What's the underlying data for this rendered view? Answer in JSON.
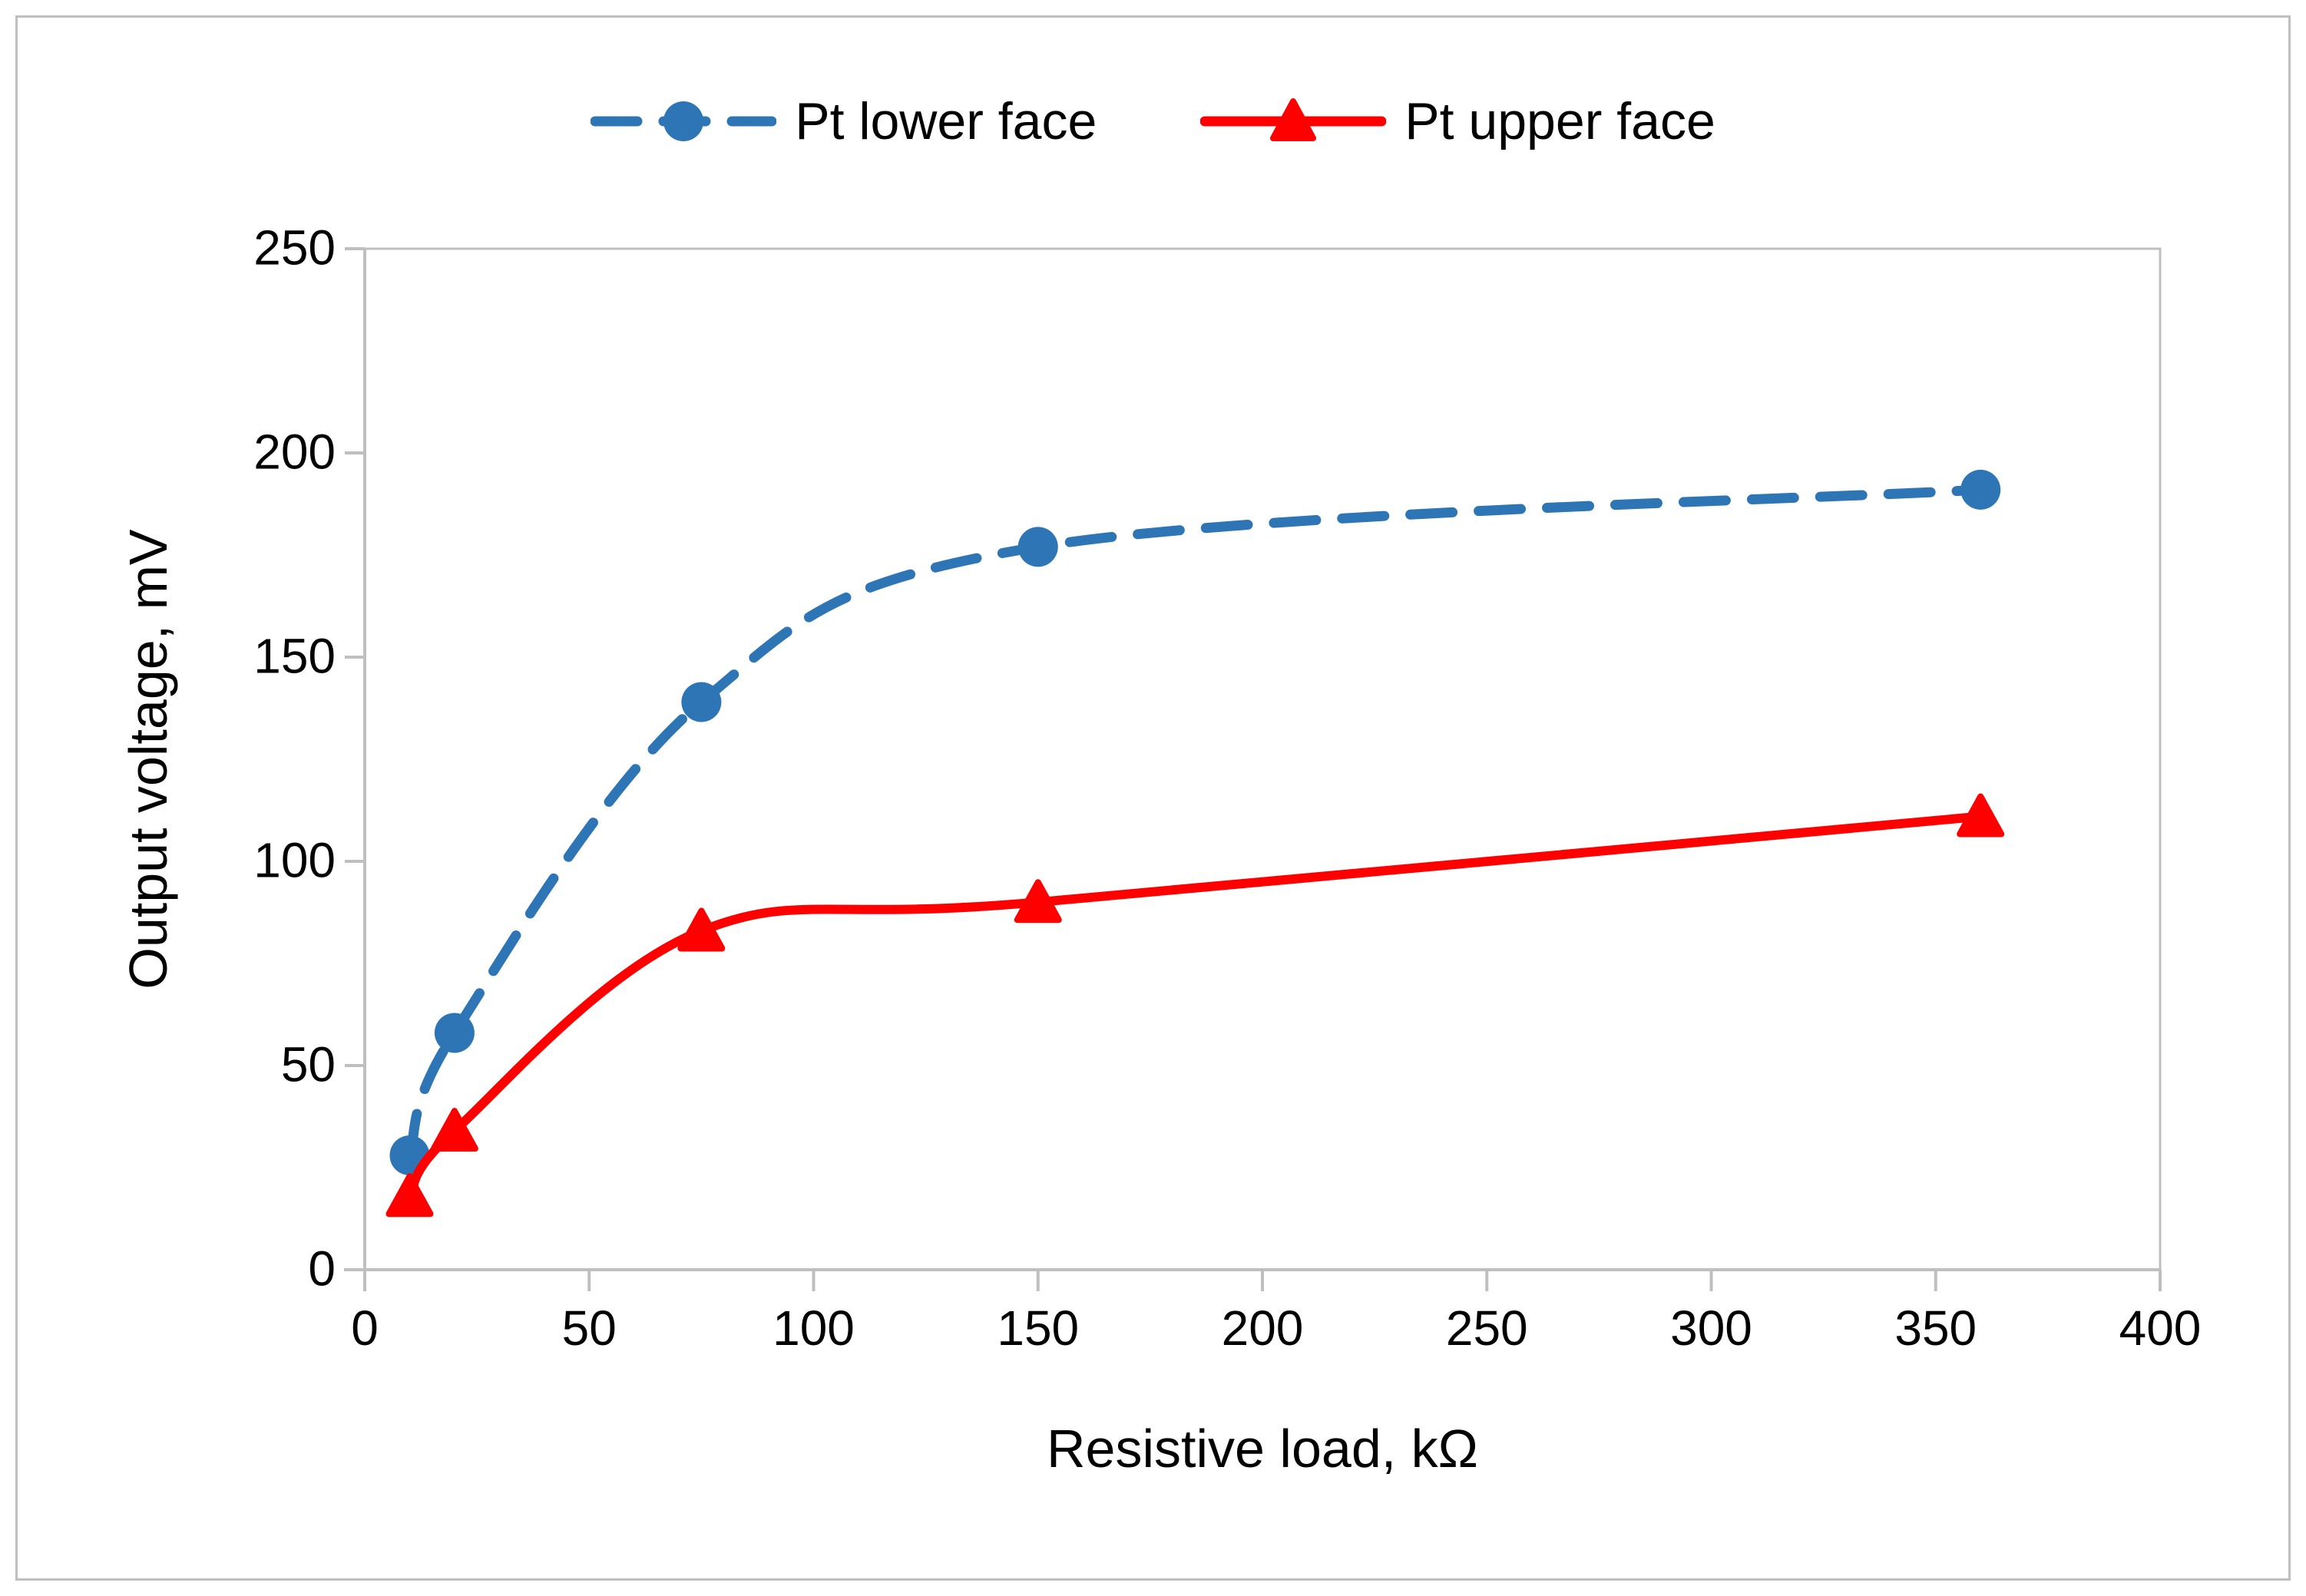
{
  "chart_data": {
    "type": "line",
    "title": "",
    "xlabel": "Resistive load, kΩ",
    "ylabel": "Output voltage, mV",
    "xlim": [
      0,
      400
    ],
    "ylim": [
      0,
      250
    ],
    "x_ticks": [
      0,
      50,
      100,
      150,
      200,
      250,
      300,
      350,
      400
    ],
    "y_ticks": [
      0,
      50,
      100,
      150,
      200,
      250
    ],
    "grid": false,
    "legend_position": "top-center",
    "x": [
      10,
      20,
      75,
      150,
      360
    ],
    "series": [
      {
        "name": "Pt lower face",
        "color": "#2E75B6",
        "line_style": "dashed",
        "marker": "circle",
        "values": [
          28,
          58,
          139,
          177,
          191
        ]
      },
      {
        "name": "Pt upper face",
        "color": "#FF0000",
        "line_style": "solid",
        "marker": "triangle",
        "values": [
          18,
          34,
          83,
          90,
          111
        ]
      }
    ]
  },
  "colors": {
    "axis": "#BFBFBF",
    "plot_border": "#BFBFBF",
    "frame_border": "#BFBFBF",
    "text": "#000000",
    "background": "#FFFFFF",
    "series_blue": "#2E75B6",
    "series_red": "#FF0000"
  }
}
